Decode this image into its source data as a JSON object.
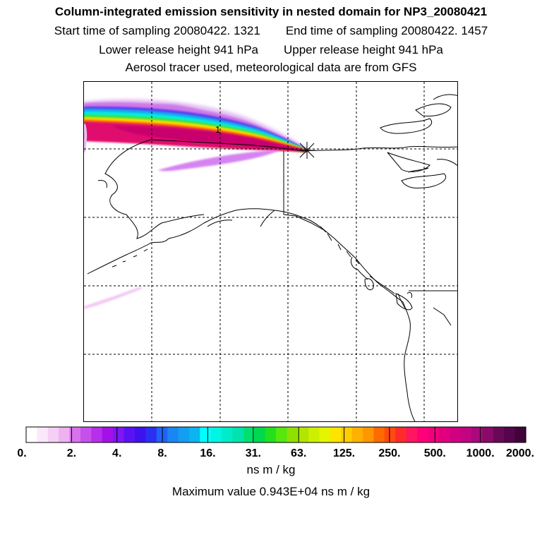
{
  "header": {
    "title": "Column-integrated emission sensitivity in nested domain for NP3_20080421",
    "start_sampling": "Start time of sampling 20080422.  1321",
    "end_sampling": "End time of sampling 20080422.  1457",
    "lower_release": "Lower release height  941 hPa",
    "upper_release": "Upper release height  941 hPa",
    "tracer_info": "Aerosol tracer used, meteorological data are from GFS"
  },
  "map": {
    "region": "Alaska and Northeast Pacific",
    "plume_label": "1",
    "release_marker_icon": "star-burst-icon",
    "plume_peak_color": "#d01a64"
  },
  "colorbar": {
    "unit": "ns m / kg",
    "tick_labels": [
      "0.",
      "2.",
      "4.",
      "8.",
      "16.",
      "31.",
      "63.",
      "125.",
      "250.",
      "500.",
      "1000.",
      "2000."
    ],
    "colors": [
      "#ffffff",
      "#fbe8fb",
      "#f5cff5",
      "#eeb2f0",
      "#d873ec",
      "#c550ec",
      "#b62fea",
      "#a410e8",
      "#7f17f2",
      "#5b12f3",
      "#3d12ef",
      "#2a2ff0",
      "#1f62f4",
      "#1a86f3",
      "#129ef2",
      "#0ab5f0",
      "#00ffff",
      "#00f5e4",
      "#00ecc9",
      "#00e3ae",
      "#00e070",
      "#00d850",
      "#22e01e",
      "#55e70e",
      "#8ee000",
      "#b0e600",
      "#ccf000",
      "#e5f500",
      "#ffe400",
      "#ffcc00",
      "#ffb000",
      "#ff9600",
      "#ff6a00",
      "#ff4a10",
      "#ff2a2a",
      "#ff1560",
      "#ff0078",
      "#f0007c",
      "#e0007e",
      "#d00080",
      "#c20483",
      "#a80a7a",
      "#8a0a6a",
      "#6a0858",
      "#55054b",
      "#400338"
    ]
  },
  "stats": {
    "max_value": "Maximum value  0.943E+04 ns m / kg"
  }
}
